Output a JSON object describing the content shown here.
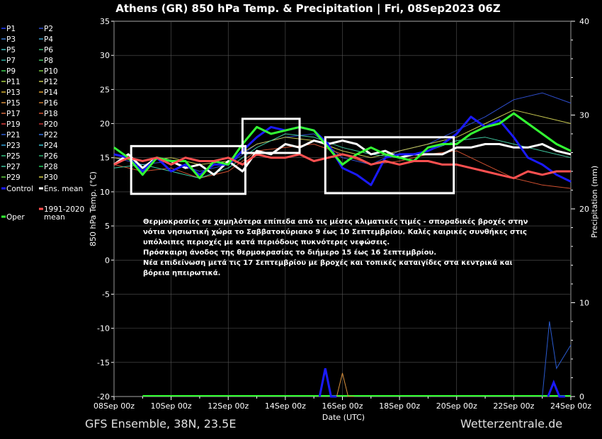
{
  "chart_data": {
    "type": "line",
    "title": "Athens  (GR)  850 hPa Temp. & Precipitation | Fri, 08Sep2023 06Z",
    "xlabel": "Date (UTC)",
    "ylabel": "850 hPa Temp. (°C)",
    "y2label": "Precipitation (mm)",
    "x_ticks": [
      "08Sep 00z",
      "10Sep 00z",
      "12Sep 00z",
      "14Sep 00z",
      "16Sep 00z",
      "18Sep 00z",
      "20Sep 00z",
      "22Sep 00z",
      "24Sep 00z"
    ],
    "xlim_days": [
      0,
      16
    ],
    "ylim": [
      -20,
      35
    ],
    "y_ticks": [
      "35",
      "30",
      "25",
      "20",
      "15",
      "10",
      "5",
      "0",
      "-5",
      "-10",
      "-15",
      "-20"
    ],
    "y2lim": [
      0,
      40
    ],
    "y2_ticks": [
      "40",
      "30",
      "20",
      "10",
      "0"
    ],
    "grid": true,
    "legend_position": "left",
    "legend": [
      {
        "name": "P1",
        "color": "#1f3bff"
      },
      {
        "name": "P2",
        "color": "#2f4fd0"
      },
      {
        "name": "P3",
        "color": "#3a7bd5"
      },
      {
        "name": "P4",
        "color": "#3aa0c8"
      },
      {
        "name": "P5",
        "color": "#40c0c0"
      },
      {
        "name": "P6",
        "color": "#3cb371"
      },
      {
        "name": "P7",
        "color": "#2ea89a"
      },
      {
        "name": "P8",
        "color": "#44c060"
      },
      {
        "name": "P9",
        "color": "#3cd050"
      },
      {
        "name": "P10",
        "color": "#78c83c"
      },
      {
        "name": "P11",
        "color": "#a8d040"
      },
      {
        "name": "P12",
        "color": "#c8c850"
      },
      {
        "name": "P13",
        "color": "#d4b030"
      },
      {
        "name": "P14",
        "color": "#e0a030"
      },
      {
        "name": "P15",
        "color": "#d8903c"
      },
      {
        "name": "P16",
        "color": "#c87830"
      },
      {
        "name": "P17",
        "color": "#d86c40"
      },
      {
        "name": "P18",
        "color": "#d05030"
      },
      {
        "name": "P19",
        "color": "#e04040"
      },
      {
        "name": "P20",
        "color": "#c03030"
      },
      {
        "name": "P21",
        "color": "#2a5bd0"
      },
      {
        "name": "P22",
        "color": "#3070e0"
      },
      {
        "name": "P23",
        "color": "#30a0d8"
      },
      {
        "name": "P24",
        "color": "#38c0d0"
      },
      {
        "name": "P25",
        "color": "#30c080"
      },
      {
        "name": "P26",
        "color": "#28b070"
      },
      {
        "name": "P27",
        "color": "#40c8a0"
      },
      {
        "name": "P28",
        "color": "#20d060"
      },
      {
        "name": "P29",
        "color": "#60d040"
      },
      {
        "name": "P30",
        "color": "#d8d040"
      },
      {
        "name": "Control",
        "color": "#1a1aff"
      },
      {
        "name": "Ens. mean",
        "color": "#ffffff"
      },
      {
        "name": "1991-2020 mean",
        "color": "#ff5050"
      },
      {
        "name": "Oper",
        "color": "#33ff33"
      }
    ],
    "series": [
      {
        "name": "Ens. mean",
        "color": "#ffffff",
        "x": [
          0,
          0.5,
          1,
          1.5,
          2,
          2.5,
          3,
          3.5,
          4,
          4.5,
          5,
          5.5,
          6,
          6.5,
          7,
          7.5,
          8,
          8.5,
          9,
          9.5,
          10,
          10.5,
          11,
          11.5,
          12,
          12.5,
          13,
          13.5,
          14,
          14.5,
          15,
          15.5,
          16
        ],
        "values": [
          14,
          15.5,
          13.5,
          15,
          14.5,
          13.5,
          14,
          12.5,
          14.5,
          13,
          16,
          15.5,
          17,
          16.5,
          17.5,
          17,
          17.5,
          17,
          15.5,
          16,
          15,
          15.5,
          15.5,
          15.5,
          16.5,
          16.5,
          17,
          17,
          16.5,
          16.5,
          17,
          16,
          15.5
        ]
      },
      {
        "name": "Control",
        "color": "#1a1aff",
        "x": [
          0,
          0.5,
          1,
          1.5,
          2,
          2.5,
          3,
          3.5,
          4,
          4.5,
          5,
          5.5,
          6,
          6.5,
          7,
          7.5,
          8,
          8.5,
          9,
          9.5,
          10,
          10.5,
          11,
          11.5,
          12,
          12.5,
          13,
          13.5,
          14,
          14.5,
          15,
          15.5,
          16
        ],
        "values": [
          15.5,
          15,
          13,
          15,
          13,
          14,
          12.5,
          14,
          14,
          16,
          18,
          19.5,
          19,
          19.5,
          19,
          17,
          13.5,
          12.5,
          11,
          15,
          15.5,
          15.5,
          16,
          17,
          18.5,
          21,
          19.5,
          20.5,
          18,
          15,
          14,
          12.5,
          11.5
        ]
      },
      {
        "name": "Oper",
        "color": "#33ff33",
        "x": [
          0,
          0.5,
          1,
          1.5,
          2,
          2.5,
          3,
          3.5,
          4,
          4.5,
          5,
          5.5,
          6,
          6.5,
          7,
          7.5,
          8,
          8.5,
          9,
          9.5,
          10,
          10.5,
          11,
          11.5,
          12,
          12.5,
          13,
          13.5,
          14,
          14.5,
          15,
          15.5,
          16
        ],
        "values": [
          16.5,
          15,
          12.5,
          15,
          14.5,
          14.5,
          12,
          14.5,
          14,
          17,
          19.5,
          18.5,
          19,
          19.5,
          19,
          16.5,
          14,
          15.5,
          16.5,
          15.5,
          15,
          14.5,
          16.5,
          17,
          17,
          18.5,
          19.5,
          20,
          21.5,
          20,
          18.5,
          17,
          16
        ]
      },
      {
        "name": "1991-2020 mean",
        "color": "#ff5050",
        "x": [
          0,
          0.5,
          1,
          1.5,
          2,
          2.5,
          3,
          3.5,
          4,
          4.5,
          5,
          5.5,
          6,
          6.5,
          7,
          7.5,
          8,
          8.5,
          9,
          9.5,
          10,
          10.5,
          11,
          11.5,
          12,
          12.5,
          13,
          13.5,
          14,
          14.5,
          15,
          15.5,
          16
        ],
        "values": [
          14,
          15,
          14.5,
          15,
          14,
          15,
          14.5,
          14.5,
          15,
          14,
          15.5,
          15,
          15,
          15.5,
          14.5,
          15,
          15.5,
          15,
          14,
          14.5,
          14,
          14.5,
          14.5,
          14,
          14,
          13.5,
          13,
          12.5,
          12,
          13,
          12.5,
          13,
          13
        ]
      },
      {
        "name": "P2",
        "color": "#2f4fd0",
        "x": [
          0,
          1,
          2,
          3,
          4,
          5,
          6,
          7,
          8,
          9,
          10,
          11,
          12,
          13,
          14,
          15,
          16
        ],
        "values": [
          15,
          14,
          14.5,
          13,
          14,
          17,
          18,
          18.5,
          15,
          14,
          16,
          17,
          19,
          21,
          23.5,
          24.5,
          23
        ]
      },
      {
        "name": "P18",
        "color": "#d05030",
        "x": [
          0,
          1,
          2,
          3,
          4,
          5,
          6,
          7,
          8,
          9,
          10,
          11,
          12,
          13,
          14,
          15,
          16
        ],
        "values": [
          14,
          13,
          13.5,
          12,
          13,
          16,
          16.5,
          17,
          15.5,
          14,
          14.5,
          15.5,
          16,
          14,
          12,
          11,
          10.5
        ]
      },
      {
        "name": "P12",
        "color": "#c8c850",
        "x": [
          0,
          1,
          2,
          3,
          4,
          5,
          6,
          7,
          8,
          9,
          10,
          11,
          12,
          13,
          14,
          15,
          16
        ],
        "values": [
          15,
          14.5,
          15,
          14,
          14.5,
          17,
          18,
          17.5,
          16,
          15,
          16,
          17,
          18,
          20,
          22,
          21,
          20
        ]
      },
      {
        "name": "P27",
        "color": "#40c8a0",
        "x": [
          0,
          1,
          2,
          3,
          4,
          5,
          6,
          7,
          8,
          9,
          10,
          11,
          12,
          13,
          14,
          15,
          16
        ],
        "values": [
          13.5,
          14,
          13,
          12,
          13.5,
          16.5,
          18.5,
          18,
          16.5,
          15.5,
          15,
          16,
          17.5,
          18,
          17,
          16,
          15
        ]
      }
    ],
    "precipitation": [
      {
        "name": "Control",
        "color": "#1a1aff",
        "x": [
          7.2,
          7.4,
          7.6,
          7.8
        ],
        "values": [
          0,
          3,
          0,
          0
        ]
      },
      {
        "name": "Control",
        "color": "#1a1aff",
        "x": [
          15.2,
          15.4,
          15.6,
          15.8
        ],
        "values": [
          0,
          1.5,
          0,
          0
        ]
      },
      {
        "name": "P21",
        "color": "#2a5bd0",
        "x": [
          15,
          15.25,
          15.5,
          16
        ],
        "values": [
          0,
          8,
          3,
          5.5
        ]
      },
      {
        "name": "P15",
        "color": "#d8903c",
        "x": [
          7.8,
          8,
          8.2,
          8.4
        ],
        "values": [
          0,
          2.5,
          0,
          0
        ]
      }
    ],
    "annotation_boxes": [
      {
        "x0": 0.6,
        "x1": 4.6,
        "y0": 9.7,
        "y1": 16.7
      },
      {
        "x0": 4.5,
        "x1": 6.5,
        "y0": 15.7,
        "y1": 20.7
      },
      {
        "x0": 7.4,
        "x1": 11.9,
        "y0": 9.8,
        "y1": 18
      }
    ],
    "annotation_lines": [
      "Θερμοκρασίες σε χαμηλότερα επίπεδα από τις μέσες κλιματικές τιμές - σποραδικές βροχές στην",
      "νότια νησιωτική χώρα το Σαββατοκύριακο 9 έως 10 Σεπτεμβρίου. Καλές καιρικές συνθήκες στις",
      "υπόλοιπες περιοχές με κατά περιόδους πυκνότερες νεφώσεις.",
      "Πρόσκαιρη άνοδος της θερμοκρασίας το διήμερο 15 έως 16 Σεπτεμβρίου.",
      "Νέα επιδείνωση μετά τις 17 Σεπτεμβρίου με βροχές και τοπικές καταιγίδες στα κεντρικά και",
      "βόρεια ηπειρωτικά."
    ]
  },
  "footer": {
    "left": "GFS Ensemble, 38N, 23.5E",
    "right": "Wetterzentrale.de"
  }
}
